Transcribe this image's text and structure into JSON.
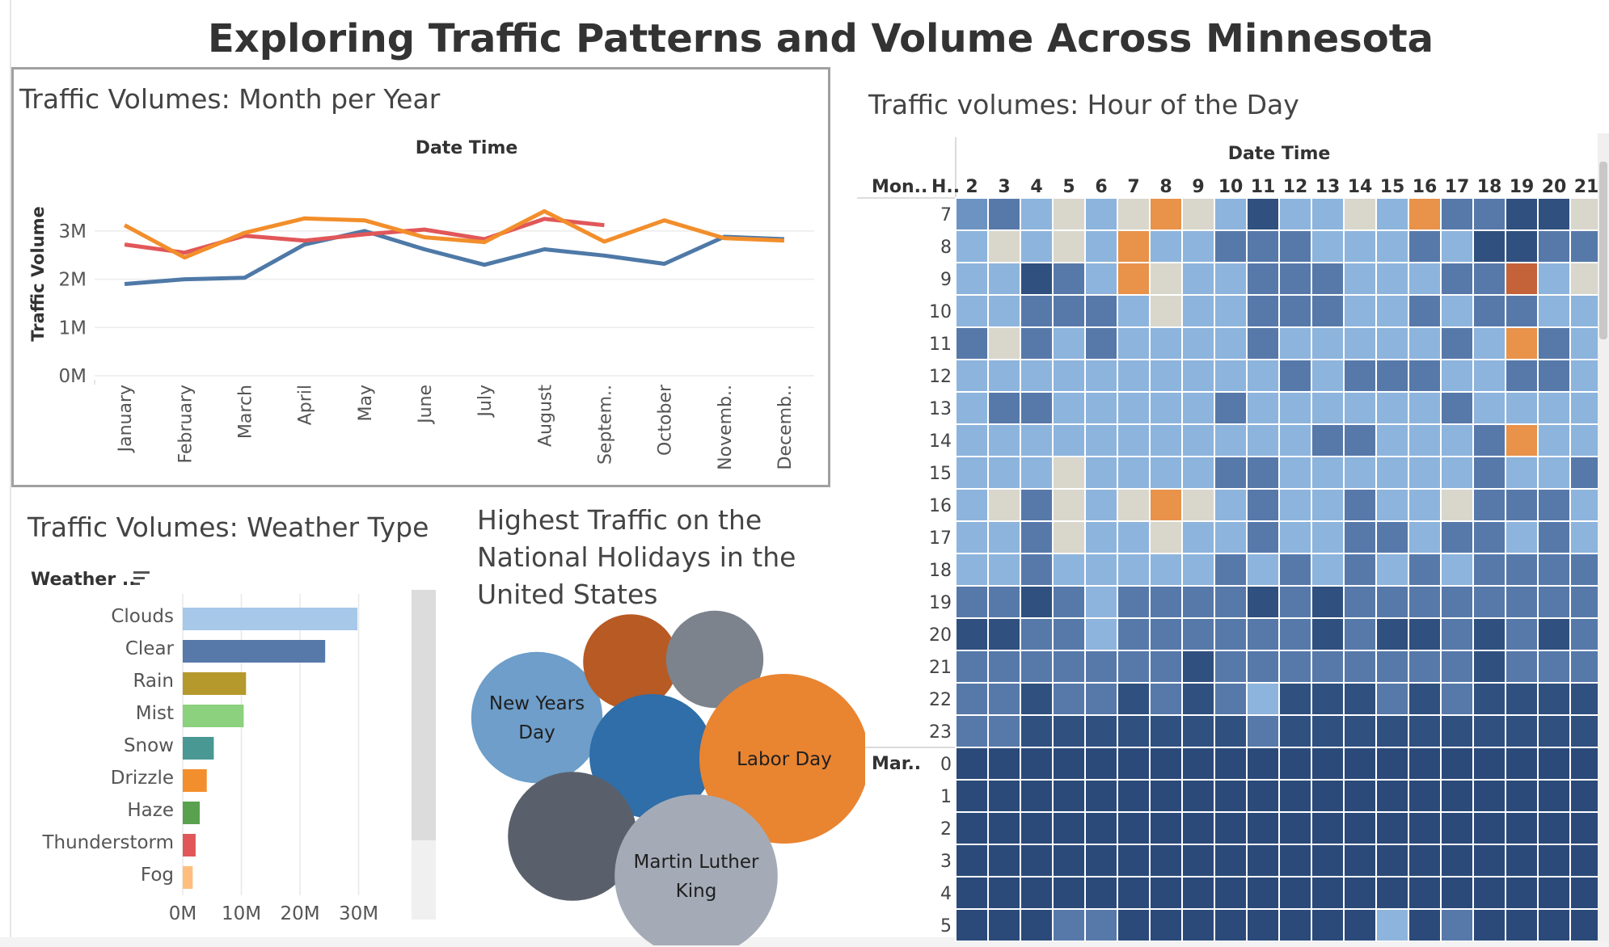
{
  "dashboard": {
    "title": "Exploring Traffic Patterns and Volume Across Minnesota"
  },
  "colors": {
    "year_blue": "#4e79a7",
    "year_red": "#e15759",
    "year_orange": "#f28e2b",
    "heat_light": "#8db4dc",
    "heat_mid": "#6d93c2",
    "heat_steel": "#5779aa",
    "heat_dark": "#30507f",
    "heat_navy": "#2b4a7a",
    "heat_beige": "#d9d6cc",
    "heat_orange": "#e8924a",
    "heat_rust": "#c4623a"
  },
  "chart_data": [
    {
      "id": "month_per_year",
      "type": "line",
      "title": "Traffic Volumes: Month per Year",
      "column_header": "Date Time",
      "ylabel": "Traffic Volume",
      "yticks": [
        "0M",
        "1M",
        "2M",
        "3M"
      ],
      "ylim": [
        0,
        3500000
      ],
      "grid": true,
      "categories": [
        "January",
        "February",
        "March",
        "April",
        "May",
        "June",
        "July",
        "August",
        "Septem..",
        "October",
        "Novemb..",
        "Decemb.."
      ],
      "series": [
        {
          "color": "#4e79a7",
          "values": [
            1900000,
            2000000,
            2030000,
            2720000,
            3000000,
            2620000,
            2300000,
            2620000,
            2490000,
            2320000,
            2880000,
            2830000
          ]
        },
        {
          "color": "#e15759",
          "values": [
            2720000,
            2550000,
            2900000,
            2800000,
            2930000,
            3030000,
            2830000,
            3250000,
            3120000,
            null,
            null,
            null
          ]
        },
        {
          "color": "#f28e2b",
          "values": [
            3120000,
            2450000,
            2960000,
            3260000,
            3220000,
            2870000,
            2770000,
            3410000,
            2780000,
            3220000,
            2850000,
            2800000
          ]
        }
      ]
    },
    {
      "id": "weather_type",
      "type": "bar",
      "title": "Traffic Volumes: Weather Type",
      "column_header": "Weather ..",
      "xticks": [
        "0M",
        "10M",
        "20M",
        "30M"
      ],
      "xlim": [
        0,
        32000000
      ],
      "categories": [
        "Clouds",
        "Clear",
        "Rain",
        "Mist",
        "Snow",
        "Drizzle",
        "Haze",
        "Thunderstorm",
        "Fog"
      ],
      "values": [
        29800000,
        24300000,
        10800000,
        10400000,
        5300000,
        4100000,
        2900000,
        2200000,
        1700000
      ],
      "colors": [
        "#a7c8e8",
        "#5779aa",
        "#b6992d",
        "#8cd17d",
        "#499894",
        "#f28e2b",
        "#59a14f",
        "#e15759",
        "#ffbe7d"
      ]
    },
    {
      "id": "holidays",
      "type": "bubble",
      "title": "Highest Traffic on the National Holidays in the United States",
      "items": [
        {
          "label": "New Years Day",
          "value": 58,
          "color": "#6e9ec9"
        },
        {
          "label": "",
          "value": 42,
          "color": "#b85a24"
        },
        {
          "label": "",
          "value": 43,
          "color": "#7c838c"
        },
        {
          "label": "",
          "value": 55,
          "color": "#2f6ea8"
        },
        {
          "label": "Labor Day",
          "value": 75,
          "color": "#e98431"
        },
        {
          "label": "",
          "value": 57,
          "color": "#5a606b"
        },
        {
          "label": "Martin Luther King",
          "value": 72,
          "color": "#a5abb6"
        }
      ]
    },
    {
      "id": "hour_of_day",
      "type": "heatmap",
      "title": "Traffic volumes: Hour of the Day",
      "column_header": "Date Time",
      "row_header_1": "Mon..",
      "row_header_2": "H..",
      "columns": [
        "2",
        "3",
        "4",
        "5",
        "6",
        "7",
        "8",
        "9",
        "10",
        "11",
        "12",
        "13",
        "14",
        "15",
        "16",
        "17",
        "18",
        "19",
        "20",
        "21"
      ],
      "groups": [
        {
          "label": "",
          "rows": [
            "7",
            "8",
            "9",
            "10",
            "11",
            "12",
            "13",
            "14",
            "15",
            "16",
            "17",
            "18",
            "19",
            "20",
            "21",
            "22",
            "23"
          ]
        },
        {
          "label": "Mar..",
          "rows": [
            "0",
            "1",
            "2",
            "3",
            "4",
            "5"
          ]
        }
      ],
      "color_scale": {
        "L": "#8db4dc",
        "M": "#6d93c2",
        "S": "#5779aa",
        "D": "#30507f",
        "N": "#2b4a7a",
        "B": "#d9d6cc",
        "O": "#e8924a",
        "R": "#c4623a"
      },
      "cells": [
        "MSLBLBOBLDLLBLOSSDDB",
        "LBLBLOLLSSSLLLSLDDSS",
        "LLDSLOBLLSSSLLLSSRLB",
        "LLSSSLBLLSSSLLSLSSLL",
        "SBSLSLLLLSLLLLLSLOSL",
        "LLLLLLLLLLSLSSSLLSSL",
        "LSSLLLLLSLLLLLLSLLLL",
        "LLLLLLLLLLLSSLLLSOLL",
        "LLLBLLLLSSLLLLLLSLLS",
        "LBSBLBOBLSLLSLLBSSSL",
        "LLSBLLBLLSLLSSLSSLSL",
        "LLSLLLLLSLSLSLSLSSSS",
        "SSDSLSSSSDSDSSSSSSSS",
        "DDSSLSSSSSSDSDDSDSDS",
        "SSSSSSSDSSSSSSSSDSSS",
        "SSDSSDSDSLDDDSDSDDDD",
        "SSDDDDDDDSDDDDDDDDDD",
        "NNNNNNNNNNNNNNNNNNNN",
        "NNNNNNNNNNNNNNNNNNNN",
        "NNNNNNNNNNNNNNNNNNNN",
        "NNNNNNNNNNNNNNNNNNNN",
        "NNNNNNNNNNNNNNNNNNNN",
        "NNNSSNNNNNNNNLNSNNNN"
      ]
    }
  ]
}
